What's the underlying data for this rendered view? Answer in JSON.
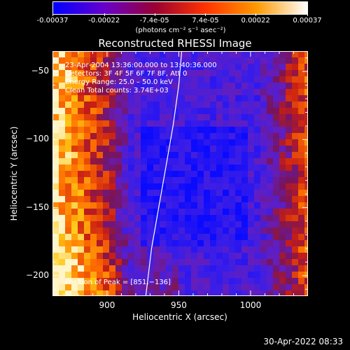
{
  "colorbar": {
    "tick_labels": [
      "-0.00037",
      "-0.00022",
      "-7.4e-05",
      "7.4e-05",
      "0.00022",
      "0.00037"
    ],
    "tick_values": [
      -0.00037,
      -0.00022,
      -7.4e-05,
      7.4e-05,
      0.00022,
      0.00037
    ],
    "unit_label": "(photons cm⁻² s⁻¹ asec⁻²)",
    "range": [
      -0.00037,
      0.00037
    ],
    "colors": [
      "#0000ff",
      "#6600cc",
      "#990033",
      "#ff3300",
      "#ff9900",
      "#ffffff"
    ]
  },
  "chart_data": {
    "type": "heatmap",
    "title": "Reconstructed RHESSI Image",
    "xlabel": "Heliocentric X (arcsec)",
    "ylabel": "Heliocentric Y (arcsec)",
    "xlim": [
      862,
      1040
    ],
    "ylim": [
      -215,
      -35
    ],
    "xticks": [
      900,
      950,
      1000
    ],
    "yticks": [
      -50,
      -100,
      -150,
      -200
    ],
    "xtick_labels": [
      "900",
      "950",
      "1000"
    ],
    "ytick_labels": [
      "−50",
      "−100",
      "−150",
      "−200"
    ],
    "limb_curve": [
      [
        952,
        -35
      ],
      [
        950,
        -60
      ],
      [
        946,
        -90
      ],
      [
        941,
        -120
      ],
      [
        936,
        -150
      ],
      [
        931,
        -180
      ],
      [
        927,
        -215
      ]
    ],
    "peak": [
      851,
      -136
    ],
    "annotations": {
      "time": "23‑Apr‑2004 13:36:00.000 to 13:40:36.000",
      "detectors": "Detectors: 3F 4F 5F 6F 7F 8F, Att 0",
      "energy": "Energy Range: 25.0 – 50.0 keV",
      "clean": "Clean     Total counts: 3.74E+03",
      "peak_label": "Position of Peak = [851,−136]"
    }
  },
  "footer": {
    "timestamp": "30‑Apr‑2022 08:33"
  }
}
